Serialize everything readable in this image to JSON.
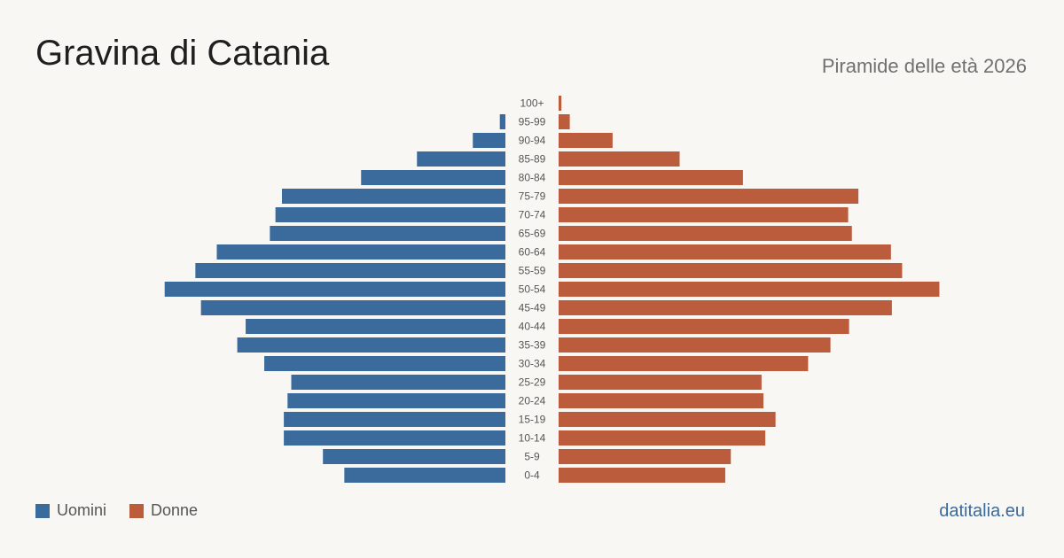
{
  "title": "Gravina di Catania",
  "subtitle": "Piramide delle età 2026",
  "source": "datitalia.eu",
  "colors": {
    "men": "#3b6a9c",
    "women": "#bb5d3d",
    "tick": "#555555"
  },
  "chart_data": {
    "type": "bar",
    "orientation": "horizontal-pyramid",
    "categories": [
      "100+",
      "95-99",
      "90-94",
      "85-89",
      "80-84",
      "75-79",
      "70-74",
      "65-69",
      "60-64",
      "55-59",
      "50-54",
      "45-49",
      "40-44",
      "35-39",
      "30-34",
      "25-29",
      "20-24",
      "15-19",
      "10-14",
      "5-9",
      "0-4"
    ],
    "series": [
      {
        "name": "Uomini",
        "side": "left",
        "values": [
          0,
          6,
          35,
          95,
          155,
          240,
          247,
          253,
          310,
          333,
          366,
          327,
          279,
          288,
          259,
          230,
          234,
          238,
          238,
          196,
          173
        ]
      },
      {
        "name": "Donne",
        "side": "right",
        "values": [
          3,
          12,
          58,
          130,
          198,
          322,
          311,
          315,
          357,
          369,
          409,
          358,
          312,
          292,
          268,
          218,
          220,
          233,
          222,
          185,
          179
        ]
      }
    ],
    "legend": "bottom-left",
    "grid": false
  }
}
